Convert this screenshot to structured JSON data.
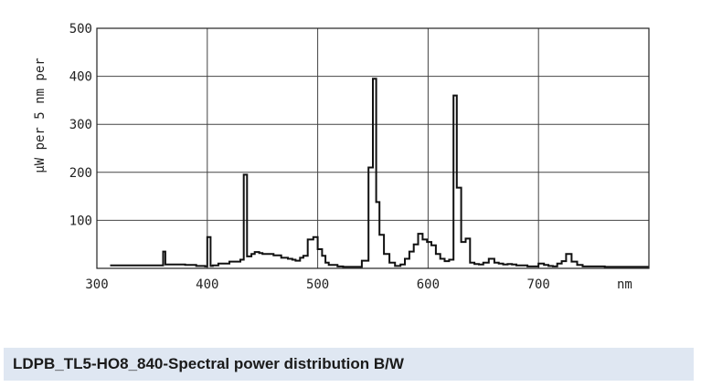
{
  "caption": "LDPB_TL5-HO8_840-Spectral power distribution B/W",
  "chart_data": {
    "type": "line",
    "title": "",
    "ylabel": "µW per 5 nm per",
    "xlabel": "",
    "x_unit_label": "nm",
    "x_tick_labels": [
      "300",
      "400",
      "500",
      "600",
      "700"
    ],
    "y_tick_labels": [
      "100",
      "200",
      "300",
      "400",
      "500"
    ],
    "xlim": [
      300,
      800
    ],
    "ylim": [
      0,
      500
    ],
    "grid": true,
    "series": [
      {
        "style": "step",
        "color": "#111111",
        "x": [
          312,
          357,
          360,
          362,
          365,
          375,
          380,
          390,
          398,
          400,
          403,
          405,
          410,
          420,
          430,
          433,
          436,
          440,
          443,
          447,
          450,
          460,
          467,
          473,
          477,
          480,
          484,
          487,
          491,
          496,
          500,
          504,
          507,
          510,
          518,
          523,
          540,
          546,
          550,
          553,
          556,
          560,
          565,
          570,
          575,
          579,
          583,
          587,
          591,
          595,
          599,
          603,
          607,
          611,
          615,
          619,
          623,
          626,
          630,
          634,
          638,
          642,
          646,
          650,
          655,
          660,
          664,
          668,
          672,
          676,
          680,
          690,
          700,
          705,
          709,
          713,
          717,
          721,
          725,
          730,
          735,
          740,
          750,
          760,
          770,
          780,
          790,
          800
        ],
        "y": [
          6,
          6,
          35,
          8,
          8,
          8,
          7,
          5,
          4,
          65,
          5,
          6,
          10,
          14,
          18,
          195,
          25,
          30,
          34,
          32,
          30,
          27,
          22,
          20,
          18,
          16,
          22,
          26,
          60,
          65,
          40,
          26,
          12,
          7,
          4,
          3,
          16,
          210,
          395,
          138,
          70,
          30,
          12,
          5,
          8,
          20,
          35,
          50,
          72,
          60,
          55,
          48,
          30,
          20,
          15,
          18,
          360,
          168,
          55,
          62,
          12,
          9,
          8,
          12,
          20,
          12,
          10,
          8,
          9,
          8,
          6,
          4,
          10,
          7,
          5,
          4,
          10,
          15,
          30,
          14,
          7,
          4,
          4,
          3,
          3,
          3,
          3,
          3
        ]
      }
    ]
  }
}
